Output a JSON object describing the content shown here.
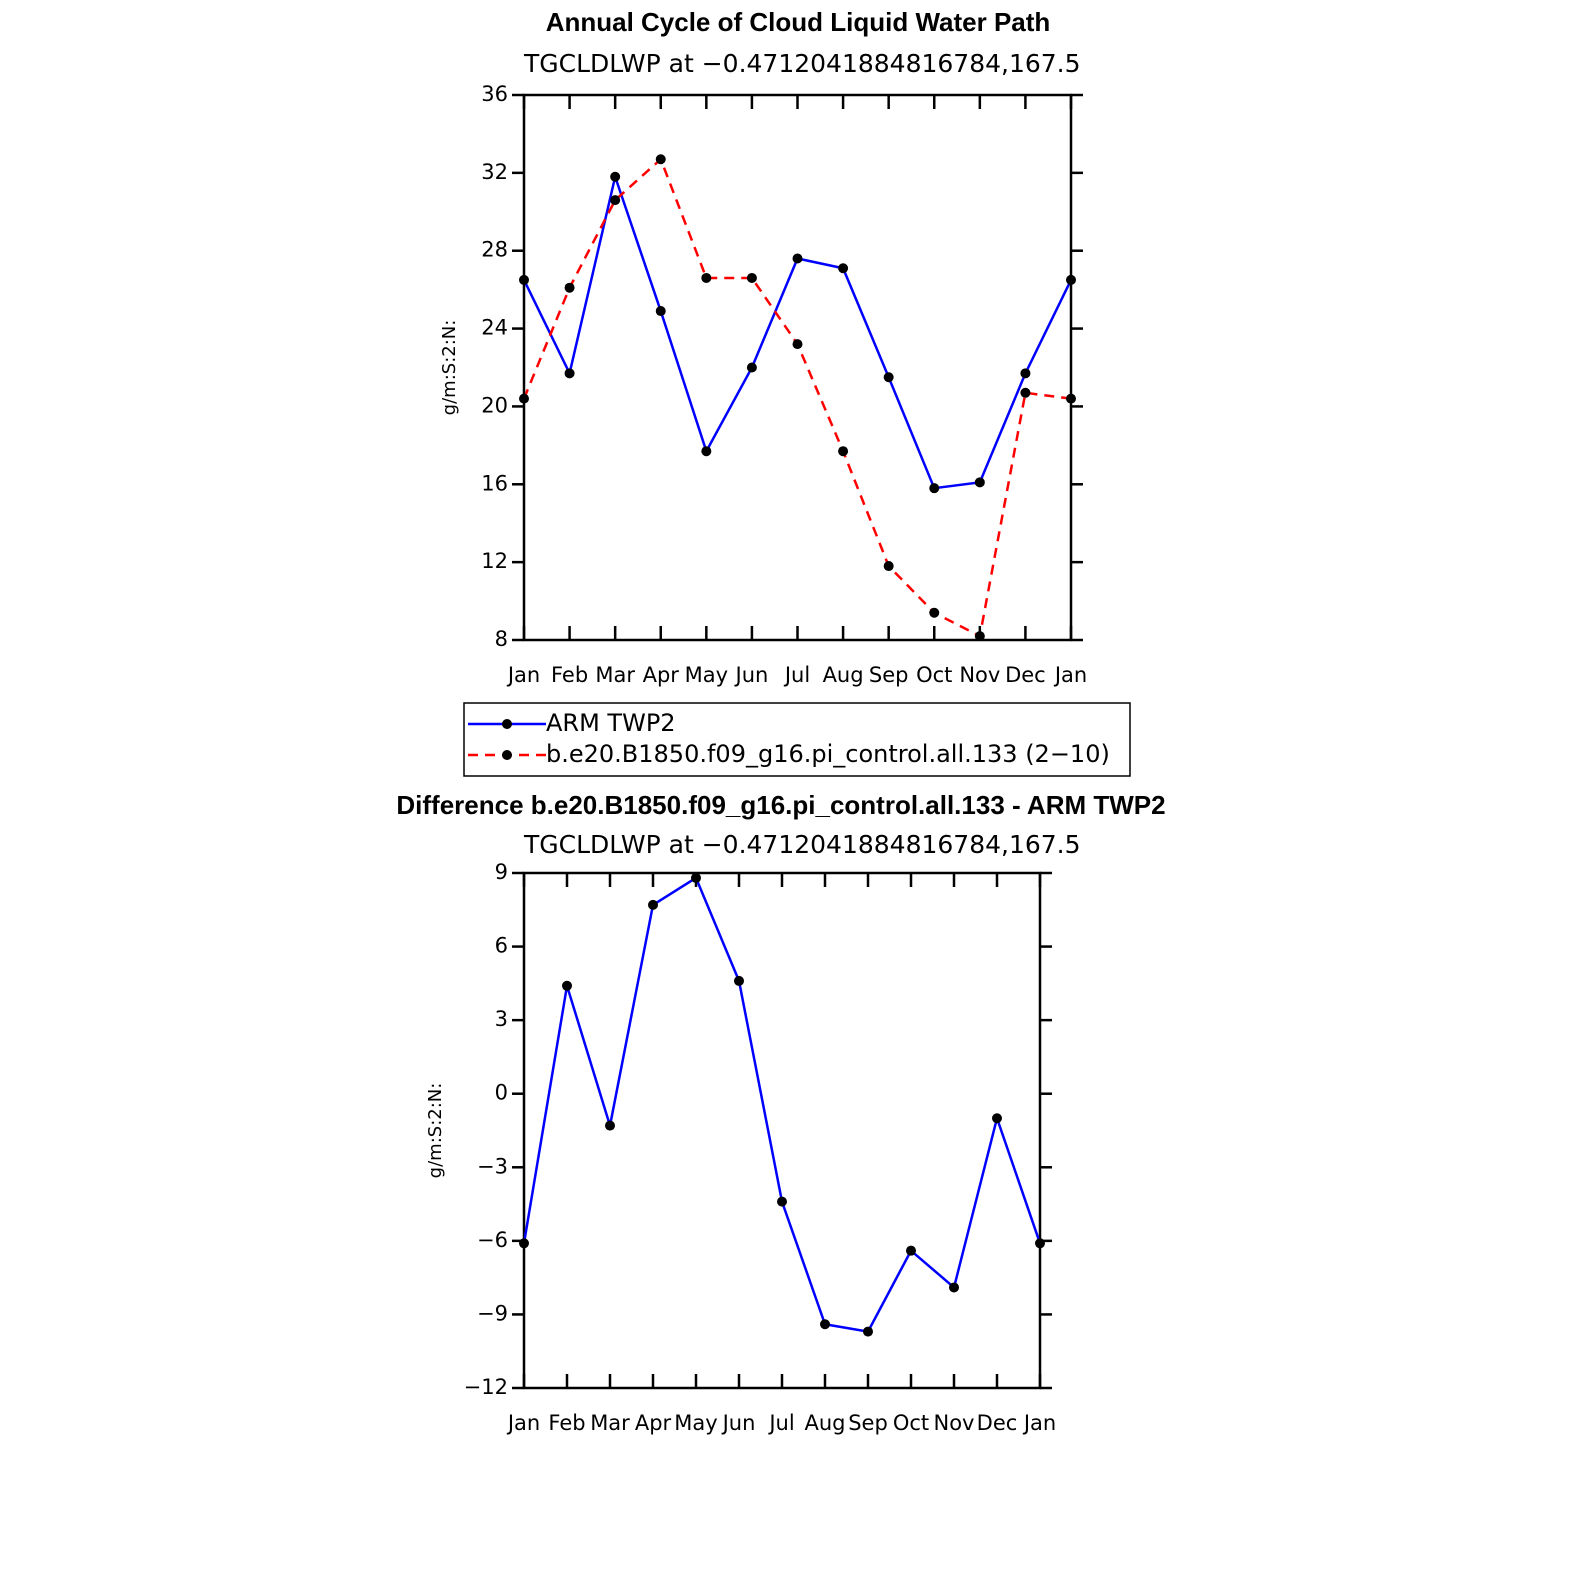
{
  "chart_data": [
    {
      "type": "line",
      "title": "Annual Cycle of Cloud Liquid Water Path",
      "subtitle": "TGCLDLWP at −0.4712041884816784,167.5",
      "ylabel": "g/m:S:2:N:",
      "categories": [
        "Jan",
        "Feb",
        "Mar",
        "Apr",
        "May",
        "Jun",
        "Jul",
        "Aug",
        "Sep",
        "Oct",
        "Nov",
        "Dec",
        "Jan"
      ],
      "series": [
        {
          "name": "ARM  TWP2",
          "color": "#0000ff",
          "dash": "solid",
          "marker_color": "#000000",
          "values": [
            26.5,
            21.7,
            31.8,
            24.9,
            17.7,
            22.0,
            27.6,
            27.1,
            21.5,
            15.8,
            16.1,
            21.7,
            26.5
          ]
        },
        {
          "name": "b.e20.B1850.f09_g16.pi_control.all.133 (2−10)",
          "color": "#ff0000",
          "dash": "dashed",
          "marker_color": "#000000",
          "values": [
            20.4,
            26.1,
            30.6,
            32.7,
            26.6,
            26.6,
            23.2,
            17.7,
            11.8,
            9.4,
            8.2,
            20.7,
            20.4
          ]
        }
      ],
      "ylim": [
        8,
        36
      ],
      "yticks": [
        8,
        12,
        16,
        20,
        24,
        28,
        32,
        36
      ],
      "legend": "bottom"
    },
    {
      "type": "line",
      "title": "Difference b.e20.B1850.f09_g16.pi_control.all.133 - ARM TWP2",
      "subtitle": "TGCLDLWP at −0.4712041884816784,167.5",
      "ylabel": "g/m:S:2:N:",
      "categories": [
        "Jan",
        "Feb",
        "Mar",
        "Apr",
        "May",
        "Jun",
        "Jul",
        "Aug",
        "Sep",
        "Oct",
        "Nov",
        "Dec",
        "Jan"
      ],
      "series": [
        {
          "color": "#0000ff",
          "dash": "solid",
          "marker_color": "#000000",
          "values": [
            -6.1,
            4.4,
            -1.3,
            7.7,
            8.8,
            4.6,
            -4.4,
            -9.4,
            -9.7,
            -6.4,
            -7.9,
            -1.0,
            -6.1
          ]
        }
      ],
      "ylim": [
        -12,
        9
      ],
      "yticks": [
        {
          "value": -12,
          "label": "−12"
        },
        {
          "value": -9,
          "label": "−9"
        },
        {
          "value": -6,
          "label": "−6"
        },
        {
          "value": -3,
          "label": "−3"
        },
        0,
        3,
        6,
        9
      ]
    }
  ]
}
